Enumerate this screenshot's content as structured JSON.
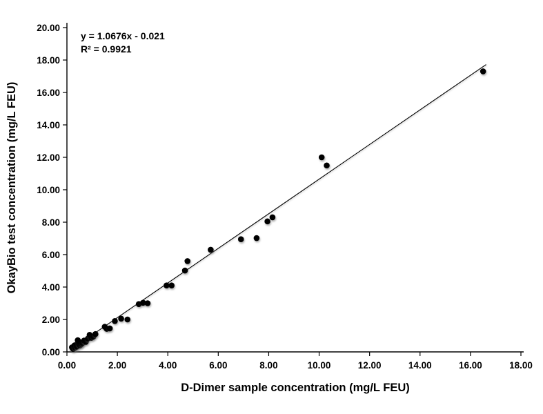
{
  "chart_data": {
    "type": "scatter",
    "title": "",
    "xlabel": "D-Dimer sample concentration (mg/L FEU)",
    "ylabel": "OkayBio test concentration (mg/L FEU)",
    "xlim": [
      0,
      18
    ],
    "ylim": [
      0,
      20
    ],
    "x_ticks": [
      "0.00",
      "2.00",
      "4.00",
      "6.00",
      "8.00",
      "10.00",
      "12.00",
      "14.00",
      "16.00",
      "18.00"
    ],
    "y_ticks": [
      "0.00",
      "2.00",
      "4.00",
      "6.00",
      "8.00",
      "10.00",
      "12.00",
      "14.00",
      "16.00",
      "18.00",
      "20.00"
    ],
    "grid": false,
    "legend": "none",
    "marker_color": "#000000",
    "line_color": "#000000",
    "annotation": {
      "equation": "y = 1.0676x - 0.021",
      "r_squared": "R² = 0.9921"
    },
    "trendline": {
      "slope": 1.0676,
      "intercept": -0.021,
      "x_start": 0.12,
      "x_end": 16.62
    },
    "points": [
      [
        0.2,
        0.28
      ],
      [
        0.25,
        0.18
      ],
      [
        0.3,
        0.4
      ],
      [
        0.33,
        0.27
      ],
      [
        0.38,
        0.45
      ],
      [
        0.4,
        0.33
      ],
      [
        0.43,
        0.72
      ],
      [
        0.46,
        0.52
      ],
      [
        0.5,
        0.6
      ],
      [
        0.52,
        0.4
      ],
      [
        0.57,
        0.48
      ],
      [
        0.62,
        0.55
      ],
      [
        0.68,
        0.7
      ],
      [
        0.75,
        0.62
      ],
      [
        0.83,
        0.82
      ],
      [
        0.9,
        1.05
      ],
      [
        0.97,
        0.87
      ],
      [
        1.05,
        0.95
      ],
      [
        1.13,
        1.1
      ],
      [
        1.5,
        1.55
      ],
      [
        1.58,
        1.42
      ],
      [
        1.7,
        1.45
      ],
      [
        1.9,
        1.9
      ],
      [
        2.15,
        2.05
      ],
      [
        2.4,
        2.0
      ],
      [
        2.85,
        2.95
      ],
      [
        3.02,
        3.03
      ],
      [
        3.2,
        3.0
      ],
      [
        3.95,
        4.1
      ],
      [
        4.15,
        4.1
      ],
      [
        4.68,
        5.02
      ],
      [
        4.78,
        5.6
      ],
      [
        5.7,
        6.3
      ],
      [
        6.9,
        6.95
      ],
      [
        7.52,
        7.02
      ],
      [
        7.95,
        8.05
      ],
      [
        8.15,
        8.3
      ],
      [
        10.1,
        12.0
      ],
      [
        10.3,
        11.5
      ],
      [
        16.5,
        17.3
      ]
    ]
  }
}
